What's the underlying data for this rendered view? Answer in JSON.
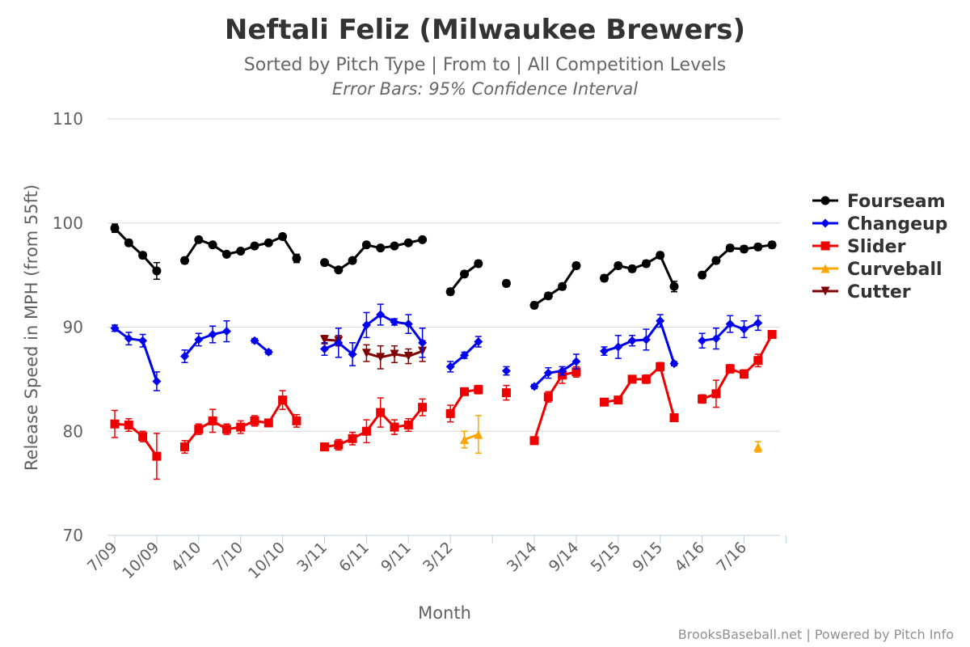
{
  "chart_data": {
    "type": "line",
    "title": "Neftali Feliz (Milwaukee Brewers)",
    "subtitle": "Sorted by Pitch Type | From to | All Competition Levels",
    "subtitle2": "Error Bars: 95% Confidence Interval",
    "xlabel": "Month",
    "ylabel": "Release Speed in MPH (from 55ft)",
    "ylim": [
      70,
      110
    ],
    "yticks": [
      70,
      80,
      90,
      100,
      110
    ],
    "grid": true,
    "legend_position": "right",
    "credits": "BrooksBaseball.net | Powered by Pitch Info",
    "x_tick_labels": [
      "7/09",
      "10/09",
      "4/10",
      "7/10",
      "10/10",
      "3/11",
      "6/11",
      "9/11",
      "3/12",
      "3/14",
      "9/14",
      "5/15",
      "9/15",
      "4/16",
      "7/16"
    ],
    "x_tick_index": [
      0,
      3,
      6,
      9,
      12,
      15,
      18,
      21,
      24,
      30,
      33,
      36,
      39,
      42,
      45
    ],
    "x_count": 48,
    "series": [
      {
        "name": "Fourseam",
        "color": "#000000",
        "marker": "circle",
        "points": [
          [
            0,
            99.5,
            0.4
          ],
          [
            1,
            98.1,
            0.3
          ],
          [
            2,
            96.9,
            0.3
          ],
          [
            3,
            95.4,
            0.8
          ],
          null,
          [
            5,
            96.4,
            0.3
          ],
          [
            6,
            98.4,
            0.2
          ],
          [
            7,
            97.9,
            0.2
          ],
          [
            8,
            97.0,
            0.2
          ],
          [
            9,
            97.3,
            0.2
          ],
          [
            10,
            97.8,
            0.2
          ],
          [
            11,
            98.1,
            0.2
          ],
          [
            12,
            98.7,
            0.2
          ],
          [
            13,
            96.6,
            0.4
          ],
          null,
          [
            15,
            96.2,
            0.2
          ],
          [
            16,
            95.5,
            0.2
          ],
          [
            17,
            96.4,
            0.2
          ],
          [
            18,
            97.9,
            0.2
          ],
          [
            19,
            97.6,
            0.2
          ],
          [
            20,
            97.8,
            0.2
          ],
          [
            21,
            98.1,
            0.2
          ],
          [
            22,
            98.4,
            0.2
          ],
          null,
          [
            24,
            93.4,
            0.3
          ],
          [
            25,
            95.1,
            0.3
          ],
          [
            26,
            96.1,
            0.3
          ],
          null,
          [
            28,
            94.2,
            0.3
          ],
          null,
          [
            30,
            92.1,
            0.3
          ],
          [
            31,
            93.0,
            0.3
          ],
          [
            32,
            93.9,
            0.3
          ],
          [
            33,
            95.9,
            0.3
          ],
          null,
          [
            35,
            94.7,
            0.3
          ],
          [
            36,
            95.9,
            0.3
          ],
          [
            37,
            95.6,
            0.3
          ],
          [
            38,
            96.1,
            0.3
          ],
          [
            39,
            96.9,
            0.3
          ],
          [
            40,
            93.9,
            0.5
          ],
          null,
          [
            42,
            95.0,
            0.3
          ],
          [
            43,
            96.4,
            0.3
          ],
          [
            44,
            97.6,
            0.3
          ],
          [
            45,
            97.5,
            0.3
          ],
          [
            46,
            97.7,
            0.3
          ],
          [
            47,
            97.9,
            0.3
          ]
        ]
      },
      {
        "name": "Changeup",
        "color": "#0000ee",
        "marker": "diamond",
        "points": [
          [
            0,
            89.9,
            0.3
          ],
          [
            1,
            88.9,
            0.6
          ],
          [
            2,
            88.7,
            0.6
          ],
          [
            3,
            84.8,
            0.9
          ],
          null,
          [
            5,
            87.2,
            0.6
          ],
          [
            6,
            88.8,
            0.6
          ],
          [
            7,
            89.3,
            0.8
          ],
          [
            8,
            89.6,
            1.0
          ],
          null,
          [
            10,
            88.7,
            0.2
          ],
          [
            11,
            87.6,
            0.2
          ],
          null,
          [
            15,
            87.9,
            0.6
          ],
          [
            16,
            88.5,
            1.4
          ],
          [
            17,
            87.4,
            1.1
          ],
          [
            18,
            90.2,
            1.2
          ],
          [
            19,
            91.2,
            1.0
          ],
          [
            20,
            90.5,
            0.3
          ],
          [
            21,
            90.3,
            0.9
          ],
          [
            22,
            88.5,
            1.4
          ],
          null,
          [
            24,
            86.2,
            0.5
          ],
          [
            25,
            87.3,
            0.3
          ],
          [
            26,
            88.6,
            0.5
          ],
          null,
          [
            28,
            85.8,
            0.4
          ],
          null,
          [
            30,
            84.3,
            0.2
          ],
          [
            31,
            85.6,
            0.5
          ],
          [
            32,
            85.8,
            0.4
          ],
          [
            33,
            86.7,
            0.7
          ],
          null,
          [
            35,
            87.7,
            0.4
          ],
          [
            36,
            88.1,
            1.1
          ],
          [
            37,
            88.7,
            0.5
          ],
          [
            38,
            88.8,
            1.0
          ],
          [
            39,
            90.6,
            0.6
          ],
          [
            40,
            86.5,
            0.2
          ],
          null,
          [
            42,
            88.7,
            0.7
          ],
          [
            43,
            88.9,
            1.0
          ],
          [
            44,
            90.3,
            0.8
          ],
          [
            45,
            89.8,
            0.8
          ],
          [
            46,
            90.4,
            0.7
          ]
        ]
      },
      {
        "name": "Slider",
        "color": "#ee0000",
        "marker": "square",
        "points": [
          [
            0,
            80.7,
            1.3
          ],
          [
            1,
            80.6,
            0.6
          ],
          [
            2,
            79.5,
            0.5
          ],
          [
            3,
            77.6,
            2.2
          ],
          null,
          [
            5,
            78.5,
            0.6
          ],
          [
            6,
            80.2,
            0.5
          ],
          [
            7,
            81.0,
            1.1
          ],
          [
            8,
            80.2,
            0.5
          ],
          [
            9,
            80.4,
            0.6
          ],
          [
            10,
            81.0,
            0.5
          ],
          [
            11,
            80.8,
            0.3
          ],
          [
            12,
            83.0,
            0.9
          ],
          [
            13,
            81.0,
            0.6
          ],
          null,
          [
            15,
            78.5,
            0.3
          ],
          [
            16,
            78.7,
            0.5
          ],
          [
            17,
            79.3,
            0.6
          ],
          [
            18,
            80.0,
            1.1
          ],
          [
            19,
            81.8,
            1.4
          ],
          [
            20,
            80.4,
            0.7
          ],
          [
            21,
            80.6,
            0.6
          ],
          [
            22,
            82.3,
            0.8
          ],
          null,
          [
            24,
            81.7,
            0.8
          ],
          [
            25,
            83.8,
            0.3
          ],
          [
            26,
            84.0,
            0.4
          ],
          null,
          [
            28,
            83.7,
            0.7
          ],
          null,
          [
            30,
            79.1,
            0.3
          ],
          [
            31,
            83.3,
            0.5
          ],
          [
            32,
            85.4,
            0.8
          ],
          [
            33,
            85.7,
            0.5
          ],
          null,
          [
            35,
            82.8,
            0.3
          ],
          [
            36,
            83.0,
            0.3
          ],
          [
            37,
            85.0,
            0.3
          ],
          [
            38,
            85.0,
            0.4
          ],
          [
            39,
            86.2,
            0.4
          ],
          [
            40,
            81.3,
            0.3
          ],
          null,
          [
            42,
            83.1,
            0.4
          ],
          [
            43,
            83.6,
            1.3
          ],
          [
            44,
            86.0,
            0.4
          ],
          [
            45,
            85.5,
            0.4
          ],
          [
            46,
            86.8,
            0.6
          ],
          [
            47,
            89.3,
            0.3
          ]
        ]
      },
      {
        "name": "Curveball",
        "color": "#ffa500",
        "marker": "triangle",
        "points": [
          [
            25,
            79.2,
            0.8
          ],
          [
            26,
            79.7,
            1.8
          ],
          null,
          [
            46,
            78.5,
            0.5
          ]
        ]
      },
      {
        "name": "Cutter",
        "color": "#7f0000",
        "marker": "triangle-down",
        "points": [
          [
            15,
            88.8,
            0.4
          ],
          [
            16,
            88.7,
            0.5
          ],
          null,
          [
            18,
            87.5,
            0.8
          ],
          [
            19,
            87.1,
            1.1
          ],
          [
            20,
            87.4,
            0.8
          ],
          [
            21,
            87.2,
            0.7
          ],
          [
            22,
            87.7,
            1.0
          ]
        ]
      }
    ]
  }
}
